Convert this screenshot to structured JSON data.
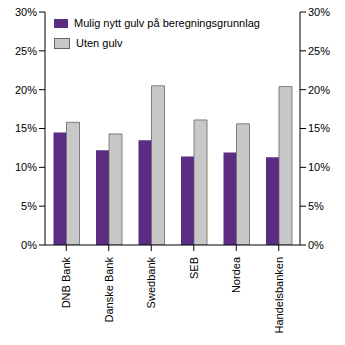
{
  "chart_data": {
    "type": "bar",
    "categories": [
      "DNB Bank",
      "Danske Bank",
      "Swedbank",
      "SEB",
      "Nordea",
      "Handelsbanken"
    ],
    "series": [
      {
        "name": "Mulig nytt gulv på beregningsgrunnlag",
        "color": "#5b2d82",
        "values": [
          14.5,
          12.2,
          13.5,
          11.4,
          11.9,
          11.3
        ]
      },
      {
        "name": "Uten gulv",
        "color": "#c8c8c8",
        "values": [
          15.8,
          14.3,
          20.5,
          16.1,
          15.6,
          20.4
        ]
      }
    ],
    "ylim": [
      0,
      30
    ],
    "yticks": [
      {
        "value": 0,
        "label": "0%"
      },
      {
        "value": 5,
        "label": "5%"
      },
      {
        "value": 10,
        "label": "10%"
      },
      {
        "value": 15,
        "label": "15%"
      },
      {
        "value": 20,
        "label": "20%"
      },
      {
        "value": 25,
        "label": "25%"
      },
      {
        "value": 30,
        "label": "30%"
      }
    ],
    "y2lim": [
      0,
      30
    ],
    "y2ticks": [
      {
        "value": 0,
        "label": "0%"
      },
      {
        "value": 5,
        "label": "5%"
      },
      {
        "value": 10,
        "label": "10%"
      },
      {
        "value": 15,
        "label": "15%"
      },
      {
        "value": 20,
        "label": "20%"
      },
      {
        "value": 25,
        "label": "25%"
      },
      {
        "value": 30,
        "label": "30%"
      }
    ],
    "grid": false,
    "legend": "top-left"
  }
}
